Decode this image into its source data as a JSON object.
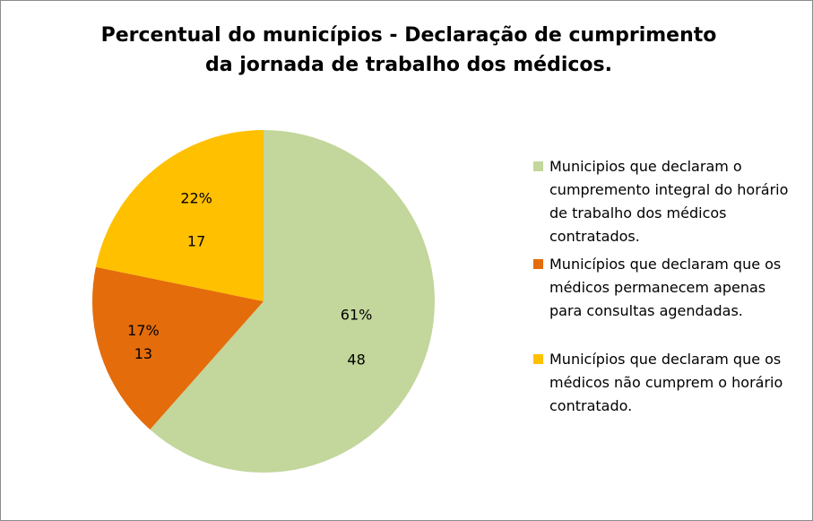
{
  "chart_data": {
    "type": "pie",
    "title_lines": [
      "Percentual do municípios  - Declaração de cumprimento",
      "da jornada de trabalho dos médicos."
    ],
    "slices": [
      {
        "name": "Municipios que declaram o cumpremento integral do horário de trabalho dos médicos contratados.",
        "value": 48,
        "percent": "61%",
        "color": "#c3d69b"
      },
      {
        "name": "Municípios que declaram que os médicos permanecem apenas para consultas agendadas.",
        "value": 13,
        "percent": "17%",
        "color": "#e46c0a"
      },
      {
        "name": "Municípios que declaram que os médicos não cumprem o horário contratado.",
        "value": 17,
        "percent": "22%",
        "color": "#ffc000"
      }
    ],
    "legend_position": "right"
  }
}
